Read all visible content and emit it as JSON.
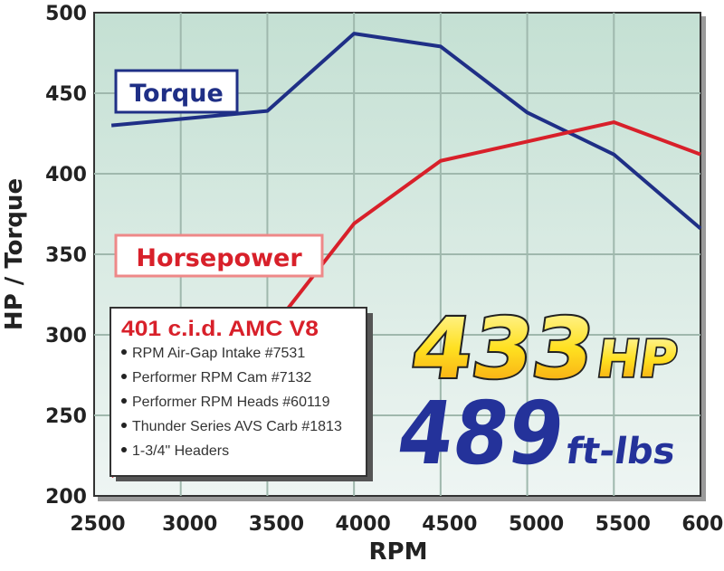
{
  "chart_data": {
    "type": "line",
    "xlabel": "RPM",
    "ylabel": "HP / Torque",
    "xlim": [
      2500,
      6000
    ],
    "ylim": [
      200,
      500
    ],
    "x_ticks": [
      "2500",
      "3000",
      "3500",
      "4000",
      "4500",
      "5000",
      "5500",
      "6000"
    ],
    "y_ticks": [
      "500",
      "450",
      "400",
      "350",
      "300",
      "250",
      "200"
    ],
    "grid": true,
    "series": [
      {
        "name": "Torque",
        "color": "#1f2f86",
        "x": [
          2600,
          3500,
          4000,
          4500,
          5000,
          5500,
          6000
        ],
        "y": [
          430,
          439,
          487,
          479,
          438,
          412,
          366
        ]
      },
      {
        "name": "Horsepower",
        "color": "#d8202a",
        "x": [
          2600,
          3000,
          3500,
          4000,
          4500,
          5000,
          5500,
          6000
        ],
        "y": [
          212,
          250,
          300,
          369,
          408,
          420,
          432,
          412
        ]
      }
    ],
    "annotations": {
      "engine_title": "401 c.i.d. AMC V8",
      "parts": [
        "RPM Air-Gap Intake #7531",
        "Performer RPM Cam #7132",
        "Performer RPM Heads #60119",
        "Thunder Series AVS Carb #1813",
        "1-3/4\" Headers"
      ],
      "hp_value": "433",
      "hp_unit": "HP",
      "torque_value": "489",
      "torque_unit": "ft-lbs"
    }
  }
}
